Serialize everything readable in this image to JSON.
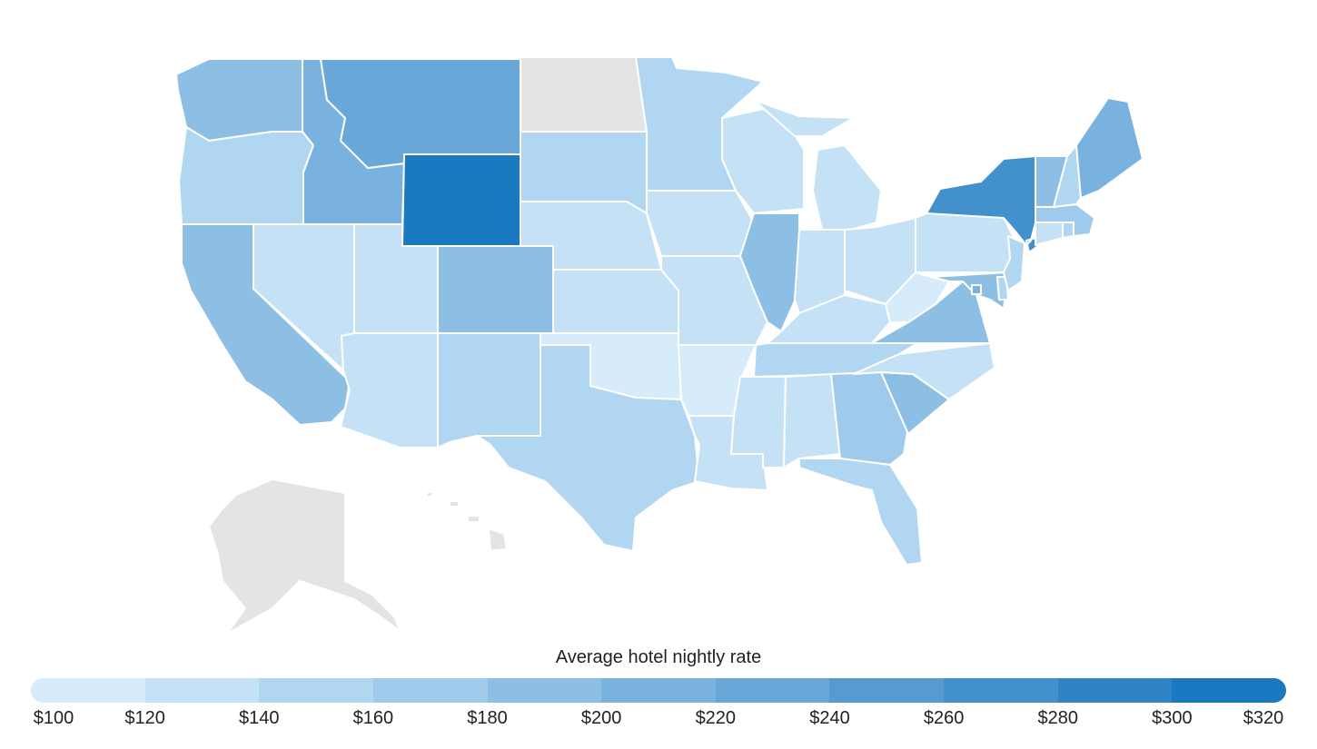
{
  "legend": {
    "title": "Average hotel nightly rate",
    "ticks": [
      "$100",
      "$120",
      "$140",
      "$160",
      "$180",
      "$200",
      "$220",
      "$240",
      "$260",
      "$280",
      "$300",
      "$320"
    ],
    "colors": [
      "#d6ecfa",
      "#c4e1f6",
      "#b1d6f1",
      "#9fcaec",
      "#8dbfe5",
      "#7ab2df",
      "#68a7d8",
      "#559bd2",
      "#4290cc",
      "#2f84c6",
      "#1b79c0"
    ],
    "no_data_color": "#e4e4e4"
  },
  "states": {
    "WA": {
      "color": "#8dbfe5"
    },
    "OR": {
      "color": "#b1d6f1"
    },
    "CA": {
      "color": "#8dbfe5"
    },
    "NV": {
      "color": "#c4e1f6"
    },
    "ID": {
      "color": "#7ab2df"
    },
    "MT": {
      "color": "#68a7d8"
    },
    "WY": {
      "color": "#1b79c0"
    },
    "UT": {
      "color": "#c4e1f6"
    },
    "AZ": {
      "color": "#c4e1f6"
    },
    "CO": {
      "color": "#8dbfe5"
    },
    "NM": {
      "color": "#b1d6f1"
    },
    "ND": {
      "color": "#e4e4e4"
    },
    "SD": {
      "color": "#b1d6f1"
    },
    "NE": {
      "color": "#c4e1f6"
    },
    "KS": {
      "color": "#c4e1f6"
    },
    "OK": {
      "color": "#d6ecfa"
    },
    "TX": {
      "color": "#b1d6f1"
    },
    "MN": {
      "color": "#b1d6f1"
    },
    "IA": {
      "color": "#c4e1f6"
    },
    "MO": {
      "color": "#c4e1f6"
    },
    "AR": {
      "color": "#d6ecfa"
    },
    "LA": {
      "color": "#c4e1f6"
    },
    "WI": {
      "color": "#c4e1f6"
    },
    "IL": {
      "color": "#8dbfe5"
    },
    "MI": {
      "color": "#c4e1f6"
    },
    "IN": {
      "color": "#c4e1f6"
    },
    "OH": {
      "color": "#c4e1f6"
    },
    "KY": {
      "color": "#c4e1f6"
    },
    "TN": {
      "color": "#b1d6f1"
    },
    "MS": {
      "color": "#c4e1f6"
    },
    "AL": {
      "color": "#c4e1f6"
    },
    "GA": {
      "color": "#9fcaec"
    },
    "FL": {
      "color": "#b1d6f1"
    },
    "SC": {
      "color": "#8dbfe5"
    },
    "NC": {
      "color": "#c4e1f6"
    },
    "VA": {
      "color": "#8dbfe5"
    },
    "WV": {
      "color": "#d6ecfa"
    },
    "PA": {
      "color": "#c4e1f6"
    },
    "NY": {
      "color": "#4290cc"
    },
    "VT": {
      "color": "#8dbfe5"
    },
    "NH": {
      "color": "#b1d6f1"
    },
    "ME": {
      "color": "#7ab2df"
    },
    "MA": {
      "color": "#9fcaec"
    },
    "CT": {
      "color": "#c4e1f6"
    },
    "RI": {
      "color": "#b1d6f1"
    },
    "NJ": {
      "color": "#b1d6f1"
    },
    "DE": {
      "color": "#b1d6f1"
    },
    "MD": {
      "color": "#8dbfe5"
    },
    "DC": {
      "color": "#7ab2df"
    },
    "AK": {
      "color": "#e4e4e4"
    },
    "HI": {
      "color": "#e4e4e4"
    }
  }
}
